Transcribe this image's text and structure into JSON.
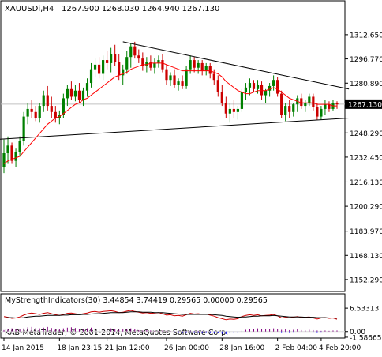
{
  "chart_data": [
    {
      "type": "candlestick",
      "title": "XAUUSDi,H4",
      "ohlc_text": "1267.900 1268.030 1264.940 1267.130",
      "current_price": 1267.13,
      "current_price_label": "1267.130",
      "ylim": [
        1145.0,
        1325.0
      ],
      "yticks": [
        {
          "v": 1312.65,
          "label": "1312.650"
        },
        {
          "v": 1296.77,
          "label": "1296.770"
        },
        {
          "v": 1280.89,
          "label": "1280.890"
        },
        {
          "v": 1248.29,
          "label": "1248.290"
        },
        {
          "v": 1232.45,
          "label": "1232.450"
        },
        {
          "v": 1216.13,
          "label": "1216.130"
        },
        {
          "v": 1200.29,
          "label": "1200.290"
        },
        {
          "v": 1183.97,
          "label": "1183.970"
        },
        {
          "v": 1168.13,
          "label": "1168.130"
        },
        {
          "v": 1152.29,
          "label": "1152.290"
        }
      ],
      "candles": [
        [
          1226.0,
          1244.0,
          1222.0,
          1235.0
        ],
        [
          1235.0,
          1246.0,
          1228.0,
          1240.0
        ],
        [
          1240.0,
          1242.0,
          1228.0,
          1230.0
        ],
        [
          1230.0,
          1238.0,
          1226.0,
          1236.0
        ],
        [
          1236.0,
          1246.0,
          1233.0,
          1243.0
        ],
        [
          1243.0,
          1262.0,
          1240.0,
          1259.0
        ],
        [
          1259.0,
          1268.0,
          1254.0,
          1264.0
        ],
        [
          1264.0,
          1270.0,
          1258.0,
          1262.0
        ],
        [
          1262.0,
          1266.0,
          1256.0,
          1258.0
        ],
        [
          1258.0,
          1268.0,
          1255.0,
          1266.0
        ],
        [
          1266.0,
          1276.0,
          1262.0,
          1273.0
        ],
        [
          1273.0,
          1279.0,
          1263.0,
          1266.0
        ],
        [
          1266.0,
          1272.0,
          1258.0,
          1262.0
        ],
        [
          1262.0,
          1266.0,
          1255.0,
          1258.0
        ],
        [
          1258.0,
          1263.0,
          1254.0,
          1260.0
        ],
        [
          1260.0,
          1274.0,
          1258.0,
          1271.0
        ],
        [
          1271.0,
          1280.0,
          1266.0,
          1277.0
        ],
        [
          1277.0,
          1282.0,
          1270.0,
          1272.0
        ],
        [
          1272.0,
          1280.0,
          1269.0,
          1276.0
        ],
        [
          1276.0,
          1281.0,
          1268.0,
          1270.0
        ],
        [
          1270.0,
          1278.0,
          1266.0,
          1276.0
        ],
        [
          1276.0,
          1284.0,
          1272.0,
          1281.0
        ],
        [
          1281.0,
          1294.0,
          1278.0,
          1290.0
        ],
        [
          1290.0,
          1297.0,
          1285.0,
          1293.0
        ],
        [
          1293.0,
          1298.0,
          1284.0,
          1287.0
        ],
        [
          1287.0,
          1299.0,
          1283.0,
          1296.0
        ],
        [
          1296.0,
          1302.0,
          1290.0,
          1294.0
        ],
        [
          1294.0,
          1304.0,
          1288.0,
          1300.0
        ],
        [
          1300.0,
          1306.0,
          1292.0,
          1295.0
        ],
        [
          1295.0,
          1300.0,
          1283.0,
          1286.0
        ],
        [
          1286.0,
          1293.0,
          1280.0,
          1290.0
        ],
        [
          1290.0,
          1302.0,
          1287.0,
          1298.0
        ],
        [
          1298.0,
          1307.0,
          1291.0,
          1305.0
        ],
        [
          1305.0,
          1308.0,
          1297.0,
          1299.0
        ],
        [
          1299.0,
          1303.0,
          1294.0,
          1297.0
        ],
        [
          1297.0,
          1301.0,
          1289.0,
          1292.0
        ],
        [
          1292.0,
          1298.0,
          1288.0,
          1295.0
        ],
        [
          1295.0,
          1299.0,
          1289.0,
          1291.0
        ],
        [
          1291.0,
          1297.0,
          1287.0,
          1294.0
        ],
        [
          1294.0,
          1299.0,
          1291.0,
          1296.0
        ],
        [
          1296.0,
          1300.0,
          1288.0,
          1290.0
        ],
        [
          1290.0,
          1293.0,
          1280.0,
          1283.0
        ],
        [
          1283.0,
          1288.0,
          1279.0,
          1286.0
        ],
        [
          1286.0,
          1290.0,
          1278.0,
          1280.0
        ],
        [
          1280.0,
          1284.0,
          1276.0,
          1282.0
        ],
        [
          1282.0,
          1286.0,
          1277.0,
          1279.0
        ],
        [
          1279.0,
          1292.0,
          1277.0,
          1290.0
        ],
        [
          1290.0,
          1299.0,
          1287.0,
          1296.0
        ],
        [
          1296.0,
          1298.0,
          1288.0,
          1291.0
        ],
        [
          1291.0,
          1296.0,
          1287.0,
          1294.0
        ],
        [
          1294.0,
          1296.0,
          1286.0,
          1289.0
        ],
        [
          1289.0,
          1294.0,
          1286.0,
          1292.0
        ],
        [
          1292.0,
          1294.0,
          1284.0,
          1287.0
        ],
        [
          1287.0,
          1290.0,
          1280.0,
          1283.0
        ],
        [
          1283.0,
          1286.0,
          1272.0,
          1275.0
        ],
        [
          1275.0,
          1280.0,
          1266.0,
          1268.0
        ],
        [
          1268.0,
          1272.0,
          1258.0,
          1261.0
        ],
        [
          1261.0,
          1268.0,
          1255.0,
          1264.0
        ],
        [
          1264.0,
          1270.0,
          1258.0,
          1262.0
        ],
        [
          1262.0,
          1266.0,
          1257.0,
          1264.0
        ],
        [
          1264.0,
          1277.0,
          1262.0,
          1275.0
        ],
        [
          1275.0,
          1281.0,
          1270.0,
          1278.0
        ],
        [
          1278.0,
          1284.0,
          1273.0,
          1281.0
        ],
        [
          1281.0,
          1283.0,
          1275.0,
          1277.0
        ],
        [
          1277.0,
          1283.0,
          1274.0,
          1280.0
        ],
        [
          1280.0,
          1282.0,
          1270.0,
          1273.0
        ],
        [
          1273.0,
          1277.0,
          1268.0,
          1276.0
        ],
        [
          1276.0,
          1281.0,
          1272.0,
          1279.0
        ],
        [
          1279.0,
          1286.0,
          1276.0,
          1283.0
        ],
        [
          1283.0,
          1285.0,
          1272.0,
          1274.0
        ],
        [
          1274.0,
          1276.0,
          1258.0,
          1260.0
        ],
        [
          1260.0,
          1268.0,
          1256.0,
          1266.0
        ],
        [
          1266.0,
          1270.0,
          1258.0,
          1262.0
        ],
        [
          1262.0,
          1268.0,
          1259.0,
          1267.0
        ],
        [
          1267.0,
          1273.0,
          1262.0,
          1271.0
        ],
        [
          1271.0,
          1274.0,
          1264.0,
          1266.0
        ],
        [
          1266.0,
          1270.0,
          1262.0,
          1268.0
        ],
        [
          1268.0,
          1274.0,
          1266.0,
          1272.0
        ],
        [
          1272.0,
          1274.0,
          1263.0,
          1265.0
        ],
        [
          1265.0,
          1268.0,
          1257.0,
          1259.0
        ],
        [
          1259.0,
          1266.0,
          1257.0,
          1264.0
        ],
        [
          1264.0,
          1270.0,
          1260.0,
          1267.0
        ],
        [
          1267.0,
          1269.0,
          1262.0,
          1264.0
        ],
        [
          1264.0,
          1270.0,
          1263.0,
          1268.0
        ],
        [
          1268.0,
          1269.0,
          1264.0,
          1267.0
        ]
      ],
      "ma": [
        1228,
        1230,
        1231,
        1232,
        1233,
        1236,
        1239,
        1242,
        1245,
        1248,
        1251,
        1254,
        1256,
        1258,
        1259,
        1261,
        1263,
        1265,
        1267,
        1268,
        1270,
        1271,
        1273,
        1275,
        1277,
        1279,
        1281,
        1283,
        1285,
        1286,
        1287,
        1288,
        1290,
        1291,
        1292,
        1293,
        1293,
        1294,
        1294,
        1294,
        1294,
        1293,
        1292,
        1291,
        1290,
        1289,
        1289,
        1289,
        1289,
        1289,
        1289,
        1289,
        1289,
        1288,
        1287,
        1285,
        1282,
        1280,
        1278,
        1276,
        1275,
        1274,
        1274,
        1275,
        1276,
        1276,
        1276,
        1277,
        1278,
        1277,
        1275,
        1273,
        1271,
        1270,
        1269,
        1268,
        1268,
        1268,
        1268,
        1267,
        1267,
        1267,
        1267,
        1266,
        1266
      ],
      "trendlines": [
        {
          "i0": 30,
          "p0": 1308.0,
          "i1": 87,
          "p1": 1277.0
        },
        {
          "i0": -2,
          "p0": 1244.0,
          "i1": 87,
          "p1": 1258.0
        }
      ]
    },
    {
      "type": "indicator",
      "label": "MyStrengthIndicators(30) 3.44854 3.74419 0.29565 0.00000 0.29565",
      "ylim": [
        -1.6,
        7.0
      ],
      "yticks": [
        {
          "v": 6.53313,
          "label": "6.53313"
        },
        {
          "v": 0.0,
          "label": "0.00"
        },
        {
          "v": -1.58665,
          "label": "-1.58665"
        }
      ],
      "series": [
        {
          "color": "#cc0000",
          "values": [
            4.2,
            4.0,
            3.7,
            3.8,
            4.1,
            4.6,
            5.0,
            5.2,
            5.0,
            4.8,
            5.1,
            5.3,
            5.0,
            4.7,
            4.5,
            4.8,
            5.1,
            5.2,
            5.0,
            4.8,
            5.0,
            5.2,
            5.5,
            5.6,
            5.4,
            5.6,
            5.7,
            5.8,
            5.6,
            5.3,
            5.4,
            5.7,
            5.9,
            5.6,
            5.4,
            5.2,
            5.3,
            5.1,
            5.2,
            5.3,
            5.0,
            4.6,
            4.7,
            4.4,
            4.5,
            4.3,
            4.7,
            5.1,
            4.9,
            5.0,
            4.8,
            4.9,
            4.6,
            4.3,
            3.9,
            3.6,
            3.3,
            3.5,
            3.4,
            3.6,
            4.2,
            4.5,
            4.7,
            4.5,
            4.7,
            4.4,
            4.5,
            4.6,
            4.8,
            4.4,
            3.8,
            4.0,
            3.8,
            4.0,
            4.2,
            3.9,
            4.0,
            4.1,
            3.8,
            3.5,
            3.8,
            3.9,
            3.7,
            3.8,
            3.45
          ]
        },
        {
          "color": "#000000",
          "values": [
            3.8,
            3.9,
            3.9,
            3.8,
            3.8,
            3.9,
            4.1,
            4.2,
            4.3,
            4.3,
            4.4,
            4.5,
            4.5,
            4.5,
            4.5,
            4.6,
            4.6,
            4.7,
            4.7,
            4.7,
            4.8,
            4.8,
            4.9,
            5.0,
            5.0,
            5.1,
            5.2,
            5.3,
            5.3,
            5.3,
            5.3,
            5.4,
            5.5,
            5.5,
            5.5,
            5.4,
            5.4,
            5.4,
            5.3,
            5.3,
            5.3,
            5.2,
            5.1,
            5.0,
            4.9,
            4.8,
            4.8,
            4.8,
            4.8,
            4.8,
            4.8,
            4.8,
            4.8,
            4.7,
            4.6,
            4.5,
            4.3,
            4.2,
            4.1,
            4.0,
            4.1,
            4.1,
            4.2,
            4.3,
            4.3,
            4.4,
            4.4,
            4.4,
            4.5,
            4.4,
            4.3,
            4.2,
            4.1,
            4.1,
            4.1,
            4.1,
            4.0,
            4.0,
            4.0,
            3.9,
            3.9,
            3.9,
            3.8,
            3.8,
            3.74
          ]
        },
        {
          "color": "#800080",
          "bars": true,
          "values": [
            0.4,
            0.6,
            0.9,
            0.8,
            0.6,
            0.9,
            1.2,
            1.3,
            1.0,
            0.9,
            1.1,
            1.3,
            1.0,
            0.8,
            0.6,
            0.9,
            1.1,
            1.2,
            1.0,
            0.8,
            0.7,
            0.9,
            1.1,
            1.0,
            0.8,
            0.9,
            0.8,
            0.9,
            0.7,
            0.5,
            0.6,
            0.8,
            0.9,
            0.6,
            0.4,
            0.3,
            0.4,
            0.3,
            0.2,
            0.2,
            0.3,
            0.2,
            0.1,
            0.1,
            0.1,
            0.1,
            0.1,
            0.2,
            0.1,
            0.2,
            0.1,
            0.1,
            0.1,
            0.0,
            0.0,
            0.0,
            0.0,
            0.0,
            0.0,
            0.0,
            0.3,
            0.5,
            0.7,
            0.8,
            0.9,
            0.7,
            0.6,
            0.8,
            0.9,
            0.7,
            0.5,
            0.6,
            0.4,
            0.5,
            0.6,
            0.4,
            0.3,
            0.5,
            0.4,
            0.3,
            0.2,
            0.3,
            0.2,
            0.3,
            0.3
          ]
        },
        {
          "color": "#0000ff",
          "bars": true,
          "values": [
            0,
            0,
            0,
            0,
            0,
            0,
            0,
            0,
            0,
            0,
            0,
            0,
            0,
            0,
            0,
            0,
            0,
            0,
            0,
            0,
            0,
            0,
            0,
            0,
            0,
            0,
            0,
            0,
            0,
            0,
            0,
            0,
            0,
            0,
            0,
            0,
            0,
            0,
            0,
            0,
            0,
            0,
            0,
            -0.1,
            -0.2,
            -0.3,
            -0.2,
            -0.1,
            -0.2,
            -0.2,
            -0.3,
            -0.2,
            -0.3,
            -0.4,
            -0.5,
            -0.6,
            -0.7,
            -0.5,
            -0.4,
            -0.3,
            -0.1,
            0,
            0,
            0,
            0,
            0,
            0,
            0,
            0,
            0,
            -0.2,
            -0.1,
            -0.2,
            -0.1,
            0,
            0,
            0,
            0,
            -0.1,
            -0.2,
            -0.1,
            0,
            0,
            0,
            0
          ]
        }
      ]
    }
  ],
  "x_axis": {
    "labels": [
      {
        "i": 0,
        "label": "14 Jan 2015"
      },
      {
        "i": 14,
        "label": "18 Jan 23:15"
      },
      {
        "i": 26,
        "label": "21 Jan 12:00"
      },
      {
        "i": 41,
        "label": "26 Jan 00:00"
      },
      {
        "i": 55,
        "label": "28 Jan 16:00"
      },
      {
        "i": 69,
        "label": "2 Feb 04:00"
      },
      {
        "i": 80,
        "label": "4 Feb 20:00"
      }
    ]
  },
  "watermark": "KAB-MetaTrader, © 2001-2014, MetaQuotes Software Corp.",
  "colors": {
    "bull": "#008000",
    "bear": "#cc0000",
    "ma": "#ff0000",
    "trendline": "#000000",
    "grid": "#c0c0c0",
    "price_box": "#000000"
  }
}
